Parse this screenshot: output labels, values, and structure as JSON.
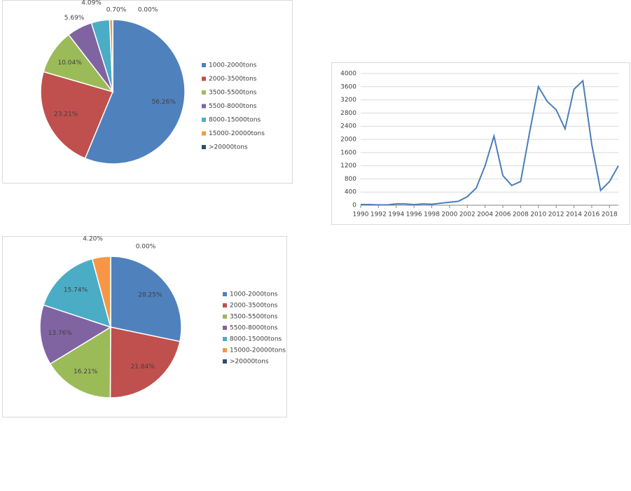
{
  "chart_data": [
    {
      "type": "pie",
      "categories": [
        "1000-2000tons",
        "2000-3500tons",
        "3500-5500tons",
        "5500-8000tons",
        "8000-15000tons",
        "15000-20000tons",
        ">20000tons"
      ],
      "values": [
        56.26,
        23.21,
        10.04,
        5.69,
        4.09,
        0.7,
        0.0
      ],
      "value_labels": [
        "56.26%",
        "23.21%",
        "10.04%",
        "5.69%",
        "4.09%",
        "0.70%",
        "0.00%"
      ],
      "colors": [
        "#4f81bd",
        "#c0504d",
        "#9bbb59",
        "#8064a2",
        "#4bacc6",
        "#f79646",
        "#2c4d75"
      ]
    },
    {
      "type": "pie",
      "categories": [
        "1000-2000tons",
        "2000-3500tons",
        "3500-5500tons",
        "5500-8000tons",
        "8000-15000tons",
        "15000-20000tons",
        ">20000tons"
      ],
      "values": [
        28.25,
        21.84,
        16.21,
        13.76,
        15.74,
        4.2,
        0.0
      ],
      "value_labels": [
        "28.25%",
        "21.84%",
        "16.21%",
        "13.76%",
        "15.74%",
        "4.20%",
        "0.00%"
      ],
      "colors": [
        "#4f81bd",
        "#c0504d",
        "#9bbb59",
        "#8064a2",
        "#4bacc6",
        "#f79646",
        "#2c4d75"
      ]
    },
    {
      "type": "line",
      "x": [
        1990,
        1991,
        1992,
        1993,
        1994,
        1995,
        1996,
        1997,
        1998,
        1999,
        2000,
        2001,
        2002,
        2003,
        2004,
        2005,
        2006,
        2007,
        2008,
        2009,
        2010,
        2011,
        2012,
        2013,
        2014,
        2015,
        2016,
        2017,
        2018,
        2019
      ],
      "values": [
        20,
        20,
        10,
        10,
        40,
        40,
        20,
        40,
        30,
        60,
        90,
        120,
        260,
        520,
        1200,
        2100,
        900,
        600,
        720,
        2200,
        3600,
        3150,
        2900,
        2320,
        3520,
        3780,
        1850,
        450,
        720,
        1200
      ],
      "color": "#4a7ebb",
      "xlim": [
        1990,
        2019
      ],
      "xticks": [
        1990,
        1992,
        1994,
        1996,
        1998,
        2000,
        2002,
        2004,
        2006,
        2008,
        2010,
        2012,
        2014,
        2016,
        2018
      ],
      "ylim": [
        0,
        4000
      ],
      "yticks": [
        0,
        400,
        800,
        1200,
        1600,
        2000,
        2400,
        2800,
        3200,
        3600,
        4000
      ],
      "grid": true
    }
  ]
}
